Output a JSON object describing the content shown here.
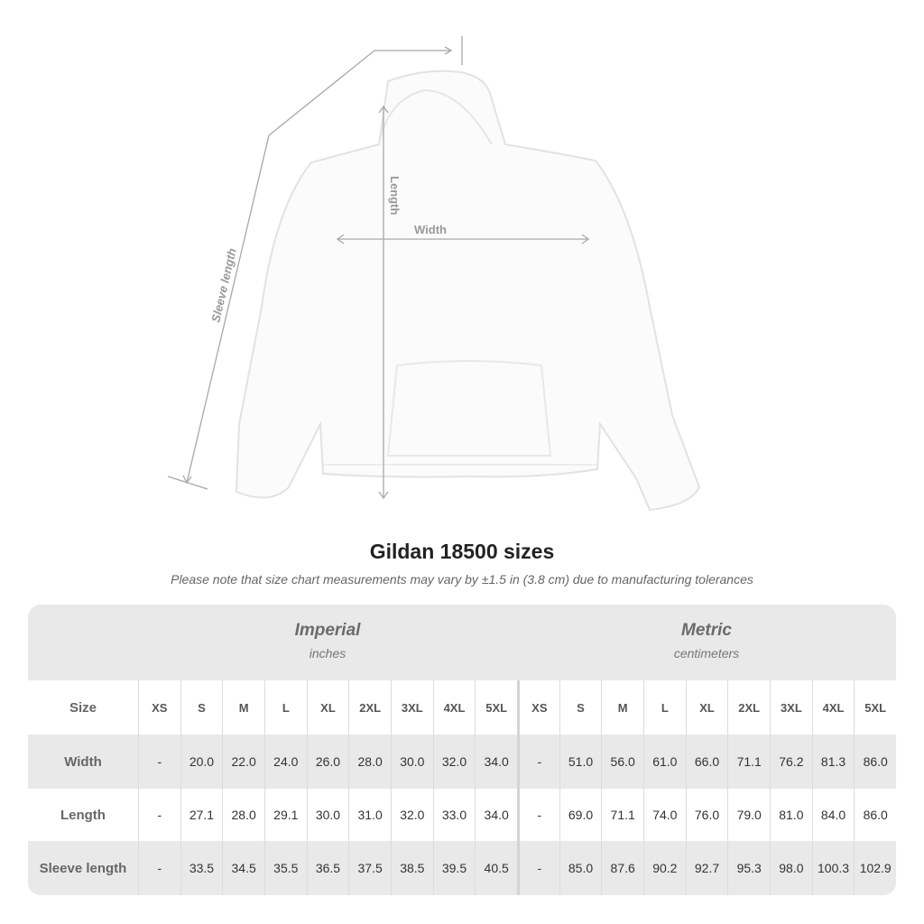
{
  "illustration": {
    "labels": {
      "length": "Length",
      "width": "Width",
      "sleeve": "Sleeve length"
    }
  },
  "title": "Gildan 18500 sizes",
  "note": "Please note that size chart measurements may vary by ±1.5 in (3.8 cm) due to manufacturing tolerances",
  "table": {
    "imperial": {
      "title": "Imperial",
      "unit": "inches"
    },
    "metric": {
      "title": "Metric",
      "unit": "centimeters"
    },
    "size_label": "Size",
    "sizes": [
      "XS",
      "S",
      "M",
      "L",
      "XL",
      "2XL",
      "3XL",
      "4XL",
      "5XL"
    ],
    "rows": [
      {
        "label": "Width",
        "imperial": [
          "-",
          "20.0",
          "22.0",
          "24.0",
          "26.0",
          "28.0",
          "30.0",
          "32.0",
          "34.0"
        ],
        "metric": [
          "-",
          "51.0",
          "56.0",
          "61.0",
          "66.0",
          "71.1",
          "76.2",
          "81.3",
          "86.0"
        ]
      },
      {
        "label": "Length",
        "imperial": [
          "-",
          "27.1",
          "28.0",
          "29.1",
          "30.0",
          "31.0",
          "32.0",
          "33.0",
          "34.0"
        ],
        "metric": [
          "-",
          "69.0",
          "71.1",
          "74.0",
          "76.0",
          "79.0",
          "81.0",
          "84.0",
          "86.0"
        ]
      },
      {
        "label": "Sleeve length",
        "imperial": [
          "-",
          "33.5",
          "34.5",
          "35.5",
          "36.5",
          "37.5",
          "38.5",
          "39.5",
          "40.5"
        ],
        "metric": [
          "-",
          "85.0",
          "87.6",
          "90.2",
          "92.7",
          "95.3",
          "98.0",
          "100.3",
          "102.9"
        ]
      }
    ]
  }
}
